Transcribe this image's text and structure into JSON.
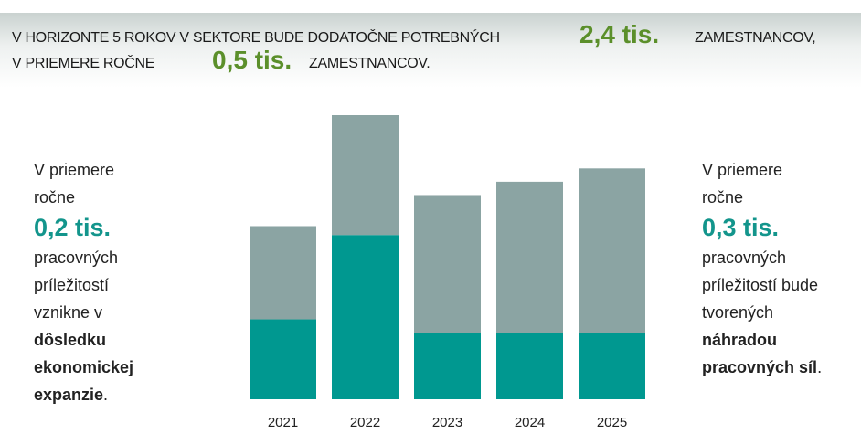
{
  "header": {
    "line1_text": "V HORIZONTE 5 ROKOV V SEKTORE BUDE DODATOČNE POTREBNÝCH",
    "line1_value": "2,4 tis.",
    "line1_suffix": "ZAMESTNANCOV,",
    "line2_text": "V PRIEMERE ROČNE",
    "line2_value": "0,5 tis.",
    "line2_suffix": "ZAMESTNANCOV."
  },
  "left_panel": {
    "line1": "V priemere",
    "line2": "ročne",
    "value": "0,2 tis.",
    "line3": "pracovných",
    "line4": "príležitostí",
    "line5": "vznikne v",
    "bold1": "dôsledku",
    "bold2": "ekonomickej",
    "bold3": "expanzie",
    "end": "."
  },
  "right_panel": {
    "line1": "V priemere",
    "line2": "ročne",
    "value": "0,3 tis.",
    "line3": "pracovných",
    "line4": "príležitostí bude",
    "line5": "tvorených",
    "bold1": "náhradou",
    "bold2": "pracovných síl",
    "end": "."
  },
  "chart_data": {
    "type": "bar",
    "stacked": true,
    "categories": [
      "2021",
      "2022",
      "2023",
      "2024",
      "2025"
    ],
    "series": [
      {
        "name": "expansion demand (est., thousands)",
        "color": "#009890",
        "values": [
          0.18,
          0.37,
          0.15,
          0.15,
          0.15
        ]
      },
      {
        "name": "replacement demand (est., thousands)",
        "color": "#8ba4a3",
        "values": [
          0.21,
          0.27,
          0.31,
          0.34,
          0.37
        ]
      }
    ],
    "ylim": [
      0,
      0.64
    ],
    "grid": false,
    "legend": "none",
    "title": "",
    "xlabel": "",
    "ylabel": ""
  }
}
